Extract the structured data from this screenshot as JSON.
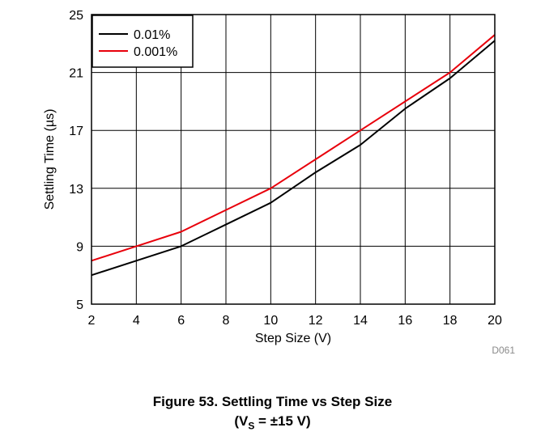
{
  "caption": {
    "title": "Figure 53. Settling Time vs Step Size",
    "condition_prefix": "(V",
    "condition_sub": "S",
    "condition_suffix": " = ±15 V)"
  },
  "chart_data": {
    "type": "line",
    "xlabel": "Step Size (V)",
    "ylabel": "Settling Time (µs)",
    "xlim": [
      2,
      20
    ],
    "ylim": [
      5,
      25
    ],
    "xticks": [
      2,
      4,
      6,
      8,
      10,
      12,
      14,
      16,
      18,
      20
    ],
    "yticks": [
      5,
      9,
      13,
      17,
      21,
      25
    ],
    "grid": true,
    "legend_position": "top-left",
    "figure_id": "D061",
    "x": [
      2,
      4,
      6,
      8,
      10,
      12,
      14,
      16,
      18,
      20
    ],
    "series": [
      {
        "name": "0.01%",
        "color": "#000000",
        "values": [
          7.0,
          8.0,
          9.0,
          10.5,
          12.0,
          14.1,
          16.0,
          18.5,
          20.6,
          23.2
        ]
      },
      {
        "name": "0.001%",
        "color": "#e8000b",
        "values": [
          8.0,
          9.0,
          10.0,
          11.5,
          13.0,
          15.0,
          17.0,
          19.0,
          21.0,
          23.6
        ]
      }
    ]
  }
}
